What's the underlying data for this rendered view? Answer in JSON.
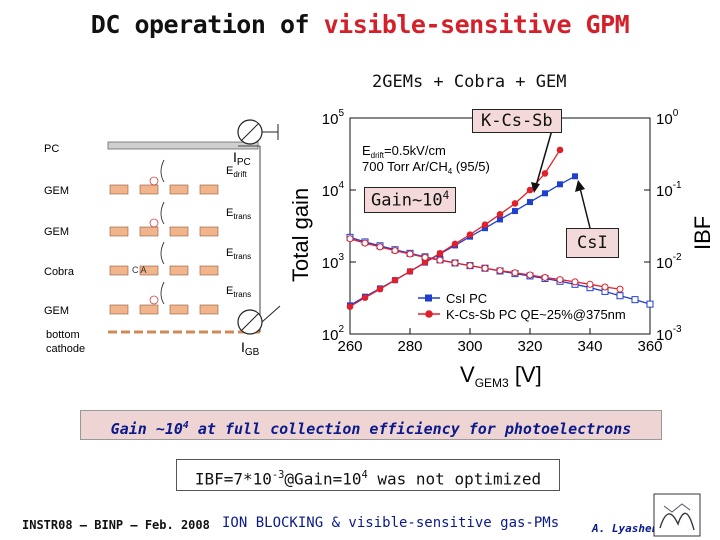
{
  "slide": {
    "title_prefix": "DC operation of ",
    "title_highlight": "visible-sensitive GPM",
    "subtitle": "2GEMs + Cobra + GEM",
    "callouts": {
      "kcssb": "K-Cs-Sb",
      "gain_base": "Gain~10",
      "gain_exp": "4",
      "csi": "CsI"
    },
    "statement": {
      "pre": "Gain ~10",
      "exp": "4",
      "post": " at full collection efficiency for photoelectrons"
    },
    "ibf": {
      "a": "IBF=7*10",
      "a_exp": "-3",
      "b": "@Gain=10",
      "b_exp": "4",
      "c": " was not optimized"
    },
    "footer": {
      "left": "INSTR08 – BINP – Feb. 2008",
      "center": "ION BLOCKING & visible-sensitive gas-PMs",
      "right": "A. Lyashenko"
    },
    "colors": {
      "title_accent": "#d4202a",
      "text_blue": "#0a1a8a",
      "callout_bg": "#f3d9d9"
    }
  },
  "diagram": {
    "layers": [
      "PC",
      "GEM",
      "GEM",
      "Cobra",
      "GEM",
      "bottom",
      "cathode"
    ],
    "fields": [
      "E",
      "E",
      "E",
      "E"
    ],
    "field_subs": [
      "drift",
      "trans",
      "trans",
      "trans"
    ],
    "currents": [
      "I",
      "I"
    ],
    "current_subs": [
      "PC",
      "GB"
    ],
    "cobra_label": "C A"
  },
  "chart_data": {
    "type": "line",
    "xlabel": "V",
    "xlabel_sub": "GEM3",
    "xlabel_unit": " [V]",
    "ylabel_left": "Total gain",
    "ylabel_right": "IBF",
    "xlim": [
      260,
      360
    ],
    "ylim_left": [
      100,
      100000
    ],
    "ylim_right": [
      0.001,
      1
    ],
    "x_ticks": [
      "260",
      "280",
      "300",
      "320",
      "340",
      "360"
    ],
    "y_left_ticks": [
      {
        "b": "10",
        "e": "2"
      },
      {
        "b": "10",
        "e": "3"
      },
      {
        "b": "10",
        "e": "4"
      },
      {
        "b": "10",
        "e": "5"
      }
    ],
    "y_right_ticks": [
      {
        "b": "10",
        "e": "-3"
      },
      {
        "b": "10",
        "e": "-2"
      },
      {
        "b": "10",
        "e": "-1"
      },
      {
        "b": "10",
        "e": "0"
      }
    ],
    "conditions": {
      "l1a": "E",
      "l1sub": "drift",
      "l1b": "=0.5kV/cm",
      "l2a": "700 Torr Ar/CH",
      "l2sub": "4",
      "l2b": " (95/5)"
    },
    "series": [
      {
        "name": "CsI PC",
        "axis": "left",
        "color": "#1f3fcf",
        "marker": "square-filled",
        "x": [
          260,
          265,
          270,
          275,
          280,
          285,
          290,
          295,
          300,
          305,
          310,
          315,
          320,
          325,
          330,
          335
        ],
        "y": [
          250,
          330,
          430,
          560,
          740,
          980,
          1300,
          1700,
          2250,
          2950,
          3900,
          5100,
          6800,
          9000,
          12000,
          15500
        ]
      },
      {
        "name": "K-Cs-Sb PC QE~25%@375nm",
        "axis": "left",
        "color": "#e0202a",
        "marker": "circle-filled",
        "x": [
          260,
          265,
          270,
          275,
          280,
          285,
          290,
          295,
          300,
          305,
          310,
          315,
          320,
          325,
          330
        ],
        "y": [
          240,
          320,
          420,
          560,
          740,
          990,
          1320,
          1780,
          2400,
          3300,
          4600,
          6500,
          10000,
          17000,
          36000
        ]
      },
      {
        "name": "CsI IBF",
        "axis": "right",
        "color": "#1f3fcf",
        "marker": "square-open",
        "x": [
          260,
          265,
          270,
          275,
          280,
          285,
          290,
          295,
          300,
          305,
          310,
          315,
          320,
          325,
          330,
          335,
          340,
          345,
          350,
          355,
          360
        ],
        "y": [
          0.022,
          0.019,
          0.0168,
          0.0148,
          0.0132,
          0.0118,
          0.0107,
          0.0097,
          0.0089,
          0.0082,
          0.0075,
          0.0069,
          0.0064,
          0.0059,
          0.0054,
          0.0049,
          0.0044,
          0.0039,
          0.0034,
          0.003,
          0.0026
        ]
      },
      {
        "name": "K-Cs-Sb IBF",
        "axis": "right",
        "color": "#e0202a",
        "marker": "circle-open",
        "x": [
          260,
          265,
          270,
          275,
          280,
          285,
          290,
          295,
          300,
          305,
          310,
          315,
          320,
          325,
          330,
          335,
          340,
          345,
          350
        ],
        "y": [
          0.021,
          0.0183,
          0.0162,
          0.0144,
          0.0129,
          0.0116,
          0.0106,
          0.0097,
          0.0089,
          0.0082,
          0.0076,
          0.0071,
          0.0066,
          0.0061,
          0.0057,
          0.0053,
          0.0049,
          0.0045,
          0.0042
        ]
      }
    ],
    "legend": {
      "position": "bottom-center",
      "entries": [
        "CsI PC",
        "K-Cs-Sb PC QE~25%@375nm"
      ]
    }
  }
}
